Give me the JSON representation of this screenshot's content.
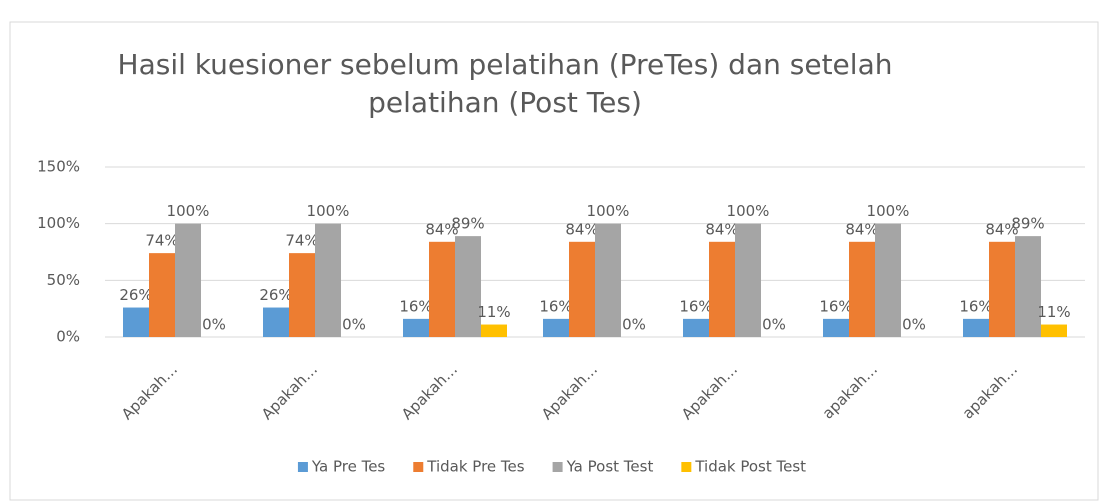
{
  "chart_data": {
    "type": "bar",
    "title": [
      "Hasil kuesioner sebelum pelatihan (PreTes) dan setelah",
      "pelatihan (Post Tes)"
    ],
    "categories": [
      "Apakah…",
      "Apakah…",
      "Apakah…",
      "Apakah…",
      "Apakah…",
      "apakah…",
      "apakah…"
    ],
    "series": [
      {
        "name": "Ya Pre Tes",
        "color": "#5b9bd5",
        "values": [
          26,
          26,
          16,
          16,
          16,
          16,
          16
        ],
        "value_labels": [
          "26%",
          "26%",
          "16%",
          "16%",
          "16%",
          "16%",
          "16%"
        ]
      },
      {
        "name": "Tidak Pre Tes",
        "color": "#ed7d31",
        "values": [
          74,
          74,
          84,
          84,
          84,
          84,
          84
        ],
        "value_labels": [
          "74%",
          "74%",
          "84%",
          "84%",
          "84%",
          "84%",
          "84%"
        ]
      },
      {
        "name": "Ya Post Test",
        "color": "#a5a5a5",
        "values": [
          100,
          100,
          89,
          100,
          100,
          100,
          89
        ],
        "value_labels": [
          "100%",
          "100%",
          "89%",
          "100%",
          "100%",
          "100%",
          "89%"
        ]
      },
      {
        "name": "Tidak Post Test",
        "color": "#ffc000",
        "values": [
          0,
          0,
          11,
          0,
          0,
          0,
          11
        ],
        "value_labels": [
          "0%",
          "0%",
          "11%",
          "0%",
          "0%",
          "0%",
          "11%"
        ]
      }
    ],
    "ylim": [
      0,
      150
    ],
    "yticks": [
      {
        "value": 0,
        "label": "0%"
      },
      {
        "value": 50,
        "label": "50%"
      },
      {
        "value": 100,
        "label": "100%"
      },
      {
        "value": 150,
        "label": "150%"
      }
    ],
    "grid": true,
    "legend": "bottom"
  }
}
